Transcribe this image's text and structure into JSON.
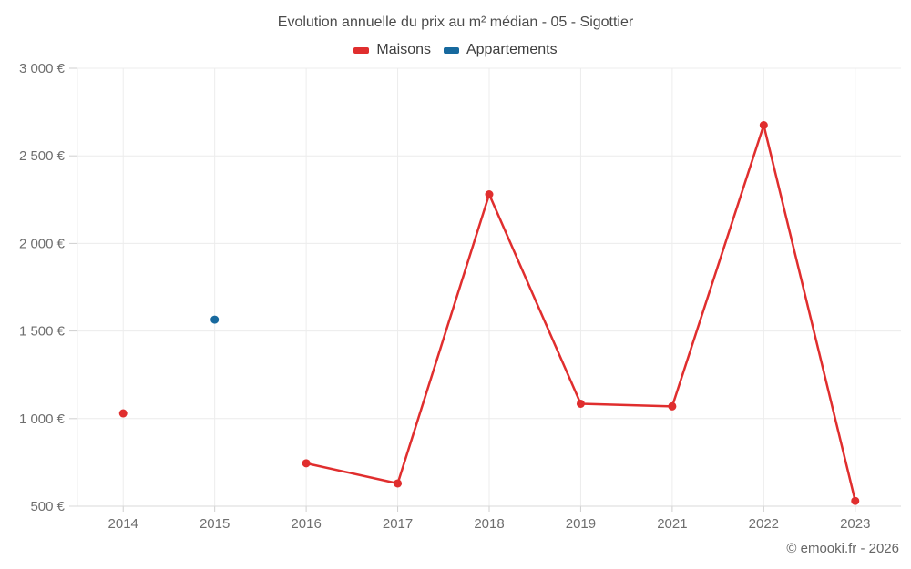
{
  "title": "Evolution annuelle du prix au m² médian - 05 - Sigottier",
  "footer": "© emooki.fr - 2026",
  "legend": {
    "items": [
      {
        "label": "Maisons",
        "color": "#e02e2e"
      },
      {
        "label": "Appartements",
        "color": "#17699e"
      }
    ]
  },
  "chart_data": {
    "type": "line",
    "title": "Evolution annuelle du prix au m² médian - 05 - Sigottier",
    "categories": [
      "2014",
      "2015",
      "2016",
      "2017",
      "2018",
      "2019",
      "2021",
      "2022",
      "2023"
    ],
    "series": [
      {
        "name": "Maisons",
        "color": "#e02e2e",
        "values": [
          1030,
          null,
          745,
          630,
          2280,
          1085,
          1070,
          2675,
          530
        ]
      },
      {
        "name": "Appartements",
        "color": "#17699e",
        "values": [
          null,
          1565,
          null,
          null,
          null,
          null,
          null,
          null,
          null
        ]
      }
    ],
    "xlabel": "",
    "ylabel": "",
    "ylim": [
      500,
      3000
    ],
    "y_ticks": [
      500,
      1000,
      1500,
      2000,
      2500,
      3000
    ],
    "y_tick_labels": [
      "500 €",
      "1 000 €",
      "1 500 €",
      "2 000 €",
      "2 500 €",
      "3 000 €"
    ],
    "grid": true,
    "legend_position": "top",
    "marker_radius": 4.5,
    "line_width": 2.5
  },
  "colors": {
    "grid": "#ececec",
    "axis_line": "#d9d9d9",
    "tick": "#cfcfcf",
    "axis_text": "#6e6e6e",
    "title_text": "#4b4b4b",
    "legend_text": "#3e3e3e",
    "footer_text": "#666666"
  }
}
